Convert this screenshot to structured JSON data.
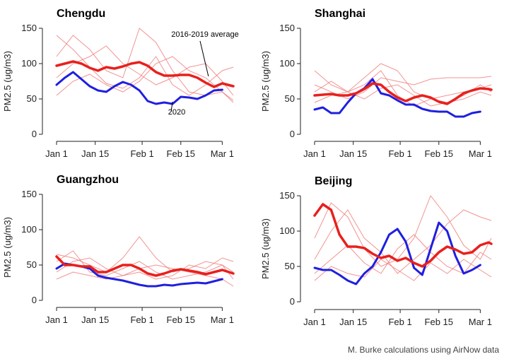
{
  "credit": "M. Burke calculations using AirNow data",
  "chart_data": [
    {
      "type": "line",
      "title": "Chengdu",
      "ylabel": "PM2.5 (ug/m3)",
      "ylim": [
        0,
        150
      ],
      "yticks": [
        0,
        50,
        100,
        150
      ],
      "xlim": [
        0,
        64
      ],
      "xticks": [
        0,
        14,
        31,
        45,
        60
      ],
      "xtick_labels": [
        "Jan 1",
        "Jan 15",
        "Feb 1",
        "Feb 15",
        "Mar 1"
      ],
      "annotations": [
        {
          "text": "2016-2019 average",
          "target": "average",
          "x": 55,
          "y": 82
        },
        {
          "text": "2020",
          "target": "2020",
          "x": 42,
          "y": 46
        }
      ],
      "average": {
        "name": "2016-2019 average",
        "color": "#e8201d",
        "x": [
          0,
          3,
          6,
          9,
          12,
          15,
          18,
          21,
          24,
          27,
          30,
          33,
          36,
          39,
          42,
          45,
          48,
          51,
          54,
          57,
          60,
          64
        ],
        "y": [
          97,
          100,
          103,
          100,
          94,
          90,
          95,
          93,
          96,
          100,
          102,
          97,
          88,
          83,
          83,
          84,
          84,
          80,
          73,
          67,
          72,
          68
        ]
      },
      "series2020": {
        "name": "2020",
        "color": "#1f1fe0",
        "x": [
          0,
          3,
          6,
          9,
          12,
          15,
          18,
          21,
          24,
          27,
          30,
          33,
          36,
          39,
          42,
          45,
          48,
          51,
          54,
          57,
          60
        ],
        "y": [
          70,
          80,
          88,
          78,
          68,
          62,
          60,
          68,
          74,
          70,
          62,
          47,
          43,
          45,
          43,
          53,
          52,
          50,
          55,
          62,
          63
        ]
      },
      "yearly": [
        {
          "x": [
            0,
            6,
            12,
            18,
            24,
            30,
            36,
            42,
            48,
            54,
            60,
            64
          ],
          "y": [
            140,
            120,
            95,
            72,
            65,
            80,
            110,
            70,
            55,
            70,
            90,
            95
          ]
        },
        {
          "x": [
            0,
            6,
            12,
            18,
            24,
            30,
            36,
            42,
            48,
            54,
            60,
            64
          ],
          "y": [
            110,
            140,
            120,
            90,
            80,
            150,
            130,
            90,
            60,
            55,
            60,
            48
          ]
        },
        {
          "x": [
            0,
            6,
            12,
            18,
            24,
            30,
            36,
            42,
            48,
            54,
            60,
            64
          ],
          "y": [
            80,
            100,
            110,
            125,
            100,
            85,
            70,
            80,
            95,
            100,
            75,
            55
          ]
        },
        {
          "x": [
            0,
            6,
            12,
            18,
            24,
            30,
            36,
            42,
            48,
            54,
            60,
            64
          ],
          "y": [
            55,
            75,
            85,
            70,
            60,
            75,
            100,
            110,
            90,
            80,
            60,
            45
          ]
        }
      ]
    },
    {
      "type": "line",
      "title": "Shanghai",
      "ylabel": "PM2.5 (ug/m3)",
      "ylim": [
        0,
        150
      ],
      "yticks": [
        0,
        50,
        100,
        150
      ],
      "xlim": [
        0,
        64
      ],
      "xticks": [
        0,
        14,
        31,
        45,
        60
      ],
      "xtick_labels": [
        "Jan 1",
        "Jan 15",
        "Feb 1",
        "Feb 15",
        "Mar 1"
      ],
      "annotations": [],
      "average": {
        "name": "2016-2019 average",
        "color": "#e8201d",
        "x": [
          0,
          3,
          6,
          9,
          12,
          15,
          18,
          21,
          24,
          27,
          30,
          33,
          36,
          39,
          42,
          45,
          48,
          51,
          54,
          57,
          60,
          63,
          64
        ],
        "y": [
          55,
          56,
          57,
          55,
          55,
          58,
          64,
          72,
          70,
          60,
          52,
          47,
          52,
          55,
          52,
          46,
          43,
          50,
          58,
          62,
          65,
          64,
          63
        ]
      },
      "series2020": {
        "name": "2020",
        "color": "#1f1fe0",
        "x": [
          0,
          3,
          6,
          9,
          12,
          15,
          18,
          21,
          24,
          27,
          30,
          33,
          36,
          39,
          42,
          45,
          48,
          51,
          54,
          57,
          60
        ],
        "y": [
          35,
          38,
          30,
          30,
          45,
          58,
          65,
          78,
          58,
          55,
          48,
          42,
          42,
          36,
          33,
          32,
          32,
          25,
          25,
          30,
          32
        ]
      },
      "yearly": [
        {
          "x": [
            0,
            6,
            12,
            18,
            24,
            30,
            36,
            42,
            48,
            54,
            60,
            64
          ],
          "y": [
            90,
            70,
            60,
            80,
            100,
            90,
            60,
            50,
            55,
            60,
            65,
            70
          ]
        },
        {
          "x": [
            0,
            6,
            12,
            18,
            24,
            30,
            36,
            42,
            48,
            54,
            60,
            64
          ],
          "y": [
            70,
            60,
            50,
            60,
            80,
            75,
            70,
            78,
            80,
            80,
            80,
            82
          ]
        },
        {
          "x": [
            0,
            6,
            12,
            18,
            24,
            30,
            36,
            42,
            48,
            54,
            60,
            64
          ],
          "y": [
            45,
            55,
            60,
            50,
            65,
            70,
            55,
            40,
            45,
            55,
            70,
            60
          ]
        },
        {
          "x": [
            0,
            6,
            12,
            18,
            24,
            30,
            36,
            42,
            48,
            54,
            60,
            64
          ],
          "y": [
            60,
            75,
            60,
            70,
            90,
            55,
            40,
            50,
            45,
            50,
            60,
            55
          ]
        }
      ]
    },
    {
      "type": "line",
      "title": "Guangzhou",
      "ylabel": "PM2.5 (ug/m3)",
      "ylim": [
        0,
        150
      ],
      "yticks": [
        0,
        50,
        100,
        150
      ],
      "xlim": [
        0,
        64
      ],
      "xticks": [
        0,
        14,
        31,
        45,
        60
      ],
      "xtick_labels": [
        "Jan 1",
        "Jan 15",
        "Feb 1",
        "Feb 15",
        "Mar 1"
      ],
      "annotations": [],
      "average": {
        "name": "2016-2019 average",
        "color": "#e8201d",
        "x": [
          0,
          3,
          6,
          9,
          12,
          15,
          18,
          21,
          24,
          27,
          30,
          33,
          36,
          39,
          42,
          45,
          48,
          51,
          54,
          57,
          60,
          64
        ],
        "y": [
          62,
          50,
          50,
          48,
          48,
          40,
          40,
          45,
          50,
          50,
          45,
          38,
          35,
          38,
          42,
          44,
          42,
          40,
          37,
          40,
          43,
          38
        ]
      },
      "series2020": {
        "name": "2020",
        "color": "#1f1fe0",
        "x": [
          0,
          3,
          6,
          9,
          12,
          15,
          18,
          21,
          24,
          27,
          30,
          33,
          36,
          39,
          42,
          45,
          48,
          51,
          54,
          57,
          60
        ],
        "y": [
          45,
          52,
          50,
          48,
          45,
          35,
          32,
          30,
          28,
          25,
          22,
          20,
          20,
          22,
          21,
          23,
          24,
          25,
          24,
          27,
          30
        ]
      },
      "yearly": [
        {
          "x": [
            0,
            6,
            12,
            18,
            24,
            30,
            36,
            42,
            48,
            54,
            60,
            64
          ],
          "y": [
            65,
            60,
            50,
            40,
            60,
            90,
            60,
            40,
            45,
            55,
            50,
            40
          ]
        },
        {
          "x": [
            0,
            6,
            12,
            18,
            24,
            30,
            36,
            42,
            48,
            54,
            60,
            64
          ],
          "y": [
            40,
            55,
            60,
            45,
            35,
            40,
            30,
            35,
            50,
            45,
            60,
            55
          ]
        },
        {
          "x": [
            0,
            6,
            12,
            18,
            24,
            30,
            36,
            42,
            48,
            54,
            60,
            64
          ],
          "y": [
            55,
            70,
            40,
            35,
            45,
            55,
            40,
            30,
            35,
            40,
            50,
            30
          ]
        },
        {
          "x": [
            0,
            6,
            12,
            18,
            24,
            30,
            36,
            42,
            48,
            54,
            60,
            64
          ],
          "y": [
            30,
            40,
            35,
            30,
            35,
            45,
            50,
            45,
            40,
            35,
            30,
            20
          ]
        }
      ]
    },
    {
      "type": "line",
      "title": "Beijing",
      "ylabel": "PM2.5 (ug/m3)",
      "ylim": [
        0,
        150
      ],
      "yticks": [
        0,
        50,
        100,
        150
      ],
      "xlim": [
        0,
        64
      ],
      "xticks": [
        0,
        14,
        31,
        45,
        60
      ],
      "xtick_labels": [
        "Jan 1",
        "Jan 15",
        "Feb 1",
        "Feb 15",
        "Mar 1"
      ],
      "annotations": [],
      "average": {
        "name": "2016-2019 average",
        "color": "#e8201d",
        "x": [
          0,
          3,
          6,
          9,
          12,
          15,
          18,
          21,
          24,
          27,
          30,
          33,
          36,
          39,
          42,
          45,
          48,
          51,
          54,
          57,
          60,
          63,
          64
        ],
        "y": [
          122,
          138,
          130,
          95,
          78,
          78,
          76,
          68,
          62,
          65,
          58,
          62,
          55,
          50,
          58,
          70,
          78,
          74,
          68,
          70,
          80,
          84,
          82
        ]
      },
      "series2020": {
        "name": "2020",
        "color": "#1f1fe0",
        "x": [
          0,
          3,
          6,
          9,
          12,
          15,
          18,
          21,
          24,
          27,
          30,
          33,
          36,
          39,
          42,
          45,
          48,
          51,
          54,
          57,
          60
        ],
        "y": [
          48,
          45,
          45,
          38,
          30,
          25,
          40,
          50,
          70,
          95,
          103,
          85,
          48,
          38,
          75,
          112,
          100,
          65,
          40,
          45,
          52
        ]
      },
      "yearly": [
        {
          "x": [
            0,
            6,
            12,
            18,
            24,
            30,
            36,
            42,
            48,
            54,
            60,
            64
          ],
          "y": [
            90,
            140,
            120,
            75,
            50,
            60,
            90,
            150,
            120,
            80,
            60,
            90
          ]
        },
        {
          "x": [
            0,
            6,
            12,
            18,
            24,
            30,
            36,
            42,
            48,
            54,
            60,
            64
          ],
          "y": [
            60,
            100,
            130,
            90,
            70,
            40,
            60,
            80,
            110,
            130,
            120,
            115
          ]
        },
        {
          "x": [
            0,
            6,
            12,
            18,
            24,
            30,
            36,
            42,
            48,
            54,
            60,
            64
          ],
          "y": [
            40,
            60,
            80,
            55,
            40,
            75,
            95,
            70,
            50,
            40,
            70,
            60
          ]
        },
        {
          "x": [
            0,
            6,
            12,
            18,
            24,
            30,
            36,
            42,
            48,
            54,
            60,
            64
          ],
          "y": [
            30,
            50,
            40,
            35,
            60,
            45,
            30,
            55,
            40,
            60,
            45,
            35
          ]
        }
      ]
    }
  ]
}
